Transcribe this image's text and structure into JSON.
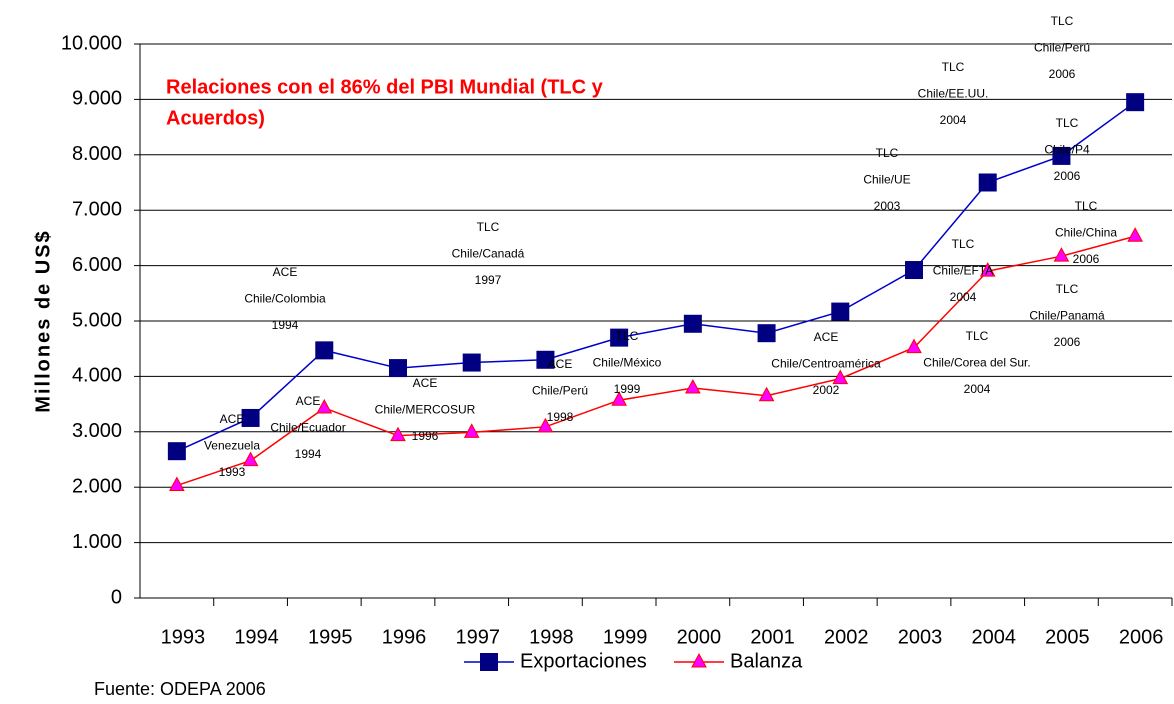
{
  "chart_data": {
    "type": "line",
    "title": [
      "Relaciones con el 86% del PBI Mundial (TLC y",
      "Acuerdos)"
    ],
    "y_label": "Millones de US$",
    "source": "Fuente: ODEPA 2006",
    "categories": [
      "1993",
      "1994",
      "1995",
      "1996",
      "1997",
      "1998",
      "1999",
      "2000",
      "2001",
      "2002",
      "2003",
      "2004",
      "2005",
      "2006"
    ],
    "series": [
      {
        "name": "Exportaciones",
        "color": "#0000cc",
        "marker_color": "#000080",
        "marker": "square",
        "values": [
          2650,
          3250,
          4470,
          4150,
          4250,
          4300,
          4700,
          4950,
          4780,
          5170,
          5920,
          7500,
          7980,
          8950
        ]
      },
      {
        "name": "Balanza",
        "color": "#ff0000",
        "marker_color": "#ff00ff",
        "marker": "triangle",
        "values": [
          2030,
          2480,
          3430,
          2930,
          2990,
          3090,
          3570,
          3790,
          3650,
          3960,
          4520,
          5900,
          6170,
          6530
        ]
      }
    ],
    "ylim": [
      0,
      10000
    ],
    "yticks": [
      0,
      {
        "value": 1000,
        "label": "1.000"
      },
      {
        "value": 2000,
        "label": "2.000"
      },
      {
        "value": 3000,
        "label": "3.000"
      },
      {
        "value": 4000,
        "label": "4.000"
      },
      {
        "value": 5000,
        "label": "5.000"
      },
      {
        "value": 6000,
        "label": "6.000"
      },
      {
        "value": 7000,
        "label": "7.000"
      },
      {
        "value": 8000,
        "label": "8.000"
      },
      {
        "value": 9000,
        "label": "9.000"
      },
      {
        "value": 10000,
        "label": "10.000"
      }
    ],
    "grid": true,
    "legend": "bottom",
    "annotations": [
      [
        "ACE",
        "Venezuela",
        "1993"
      ],
      [
        "ACE",
        "Chile/Ecuador",
        "1994"
      ],
      [
        "ACE",
        "Chile/Colombia",
        "1994"
      ],
      [
        "ACE",
        "Chile/MERCOSUR",
        "1996"
      ],
      [
        "TLC",
        "Chile/Canadá",
        "1997"
      ],
      [
        "ACE",
        "Chile/Perú",
        "1998"
      ],
      [
        "TLC",
        "Chile/México",
        "1999"
      ],
      [
        "ACE",
        "Chile/Centroamérica",
        "2002"
      ],
      [
        "TLC",
        "Chile/UE",
        "2003"
      ],
      [
        "TLC",
        "Chile/EE.UU.",
        "2004"
      ],
      [
        "TLC",
        "Chile/Perú",
        "2006"
      ],
      [
        "TLC",
        "Chile/P4",
        "2006"
      ],
      [
        "TLC",
        "Chile/China",
        "2006"
      ],
      [
        "TLC",
        "Chile/EFTA",
        "2004"
      ],
      [
        "TLC",
        "Chile/Panamá",
        "2006"
      ],
      [
        "TLC",
        "Chile/Corea del Sur.",
        "2004"
      ]
    ]
  }
}
